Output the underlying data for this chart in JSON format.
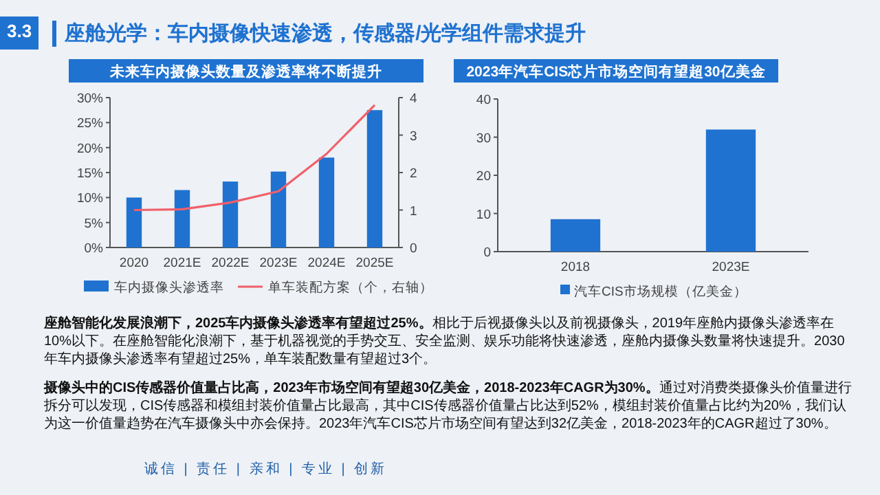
{
  "chart_data": [
    {
      "type": "bar",
      "title": "未来车内摄像头数量及渗透率将不断提升",
      "categories": [
        "2020",
        "2021E",
        "2022E",
        "2023E",
        "2024E",
        "2025E"
      ],
      "series": [
        {
          "name": "车内摄像头渗透率",
          "color": "#1f72d0",
          "values": [
            10,
            11.5,
            13.2,
            15.2,
            18,
            27.5
          ]
        },
        {
          "name": "单车装配方案（个，右轴）",
          "type": "line",
          "axis": "y2",
          "color": "#f0606a",
          "values": [
            1,
            1.02,
            1.2,
            1.5,
            2.5,
            3.8
          ]
        }
      ],
      "ylim": [
        0,
        30
      ],
      "yticks": [
        {
          "value": 0,
          "label": "0%"
        },
        {
          "value": 5,
          "label": "5%"
        },
        {
          "value": 10,
          "label": "10%"
        },
        {
          "value": 15,
          "label": "15%"
        },
        {
          "value": 20,
          "label": "20%"
        },
        {
          "value": 25,
          "label": "25%"
        },
        {
          "value": 30,
          "label": "30%"
        }
      ],
      "y2lim": [
        0,
        4
      ],
      "y2ticks": [
        0,
        1,
        2,
        3,
        4
      ],
      "legend": "bottom",
      "grid": false
    },
    {
      "type": "bar",
      "title": "2023年汽车CIS芯片市场空间有望超30亿美金",
      "categories": [
        "2018",
        "2023E"
      ],
      "series": [
        {
          "name": "汽车CIS市场规模（亿美金）",
          "color": "#1f72d0",
          "values": [
            8.5,
            32
          ]
        }
      ],
      "ylim": [
        0,
        40
      ],
      "yticks": [
        0,
        10,
        20,
        30,
        40
      ],
      "legend": "bottom",
      "grid": false
    },
    {
      "type": "other",
      "title": "座舱光学：车内摄像快速渗透，传感器/光学组件需求提升",
      "annotations": [
        "3.3",
        "座舱智能化发展浪潮下，2025车内摄像头渗透率有望超过25%。",
        "相比于后视摄像头以及前视摄像头，2019年座舱内摄像头渗透率在10%以下。在座舱智能化浪潮下，基于机器视觉的手势交互、安全监测、娱乐功能将快速渗透，座舱内摄像头数量将快速提升。2030年车内摄像头渗透率有望超过25%，单车装配数量有望超过3个。",
        "摄像头中的CIS传感器价值量占比高，2023年市场空间有望超30亿美金，2018-2023年CAGR为30%。",
        "通过对消费类摄像头价值量进行拆分可以发现，CIS传感器和模组封装价值量占比最高，其中CIS传感器价值量占比达到52%，模组封装价值量占比约为20%，我们认为这一价值量趋势在汽车摄像头中亦会保持。2023年汽车CIS芯片市场空间有望达到32亿美金，2018-2023年的CAGR超过了30%。",
        "诚信 | 责任 | 亲和 | 专业 | 创新"
      ]
    }
  ]
}
